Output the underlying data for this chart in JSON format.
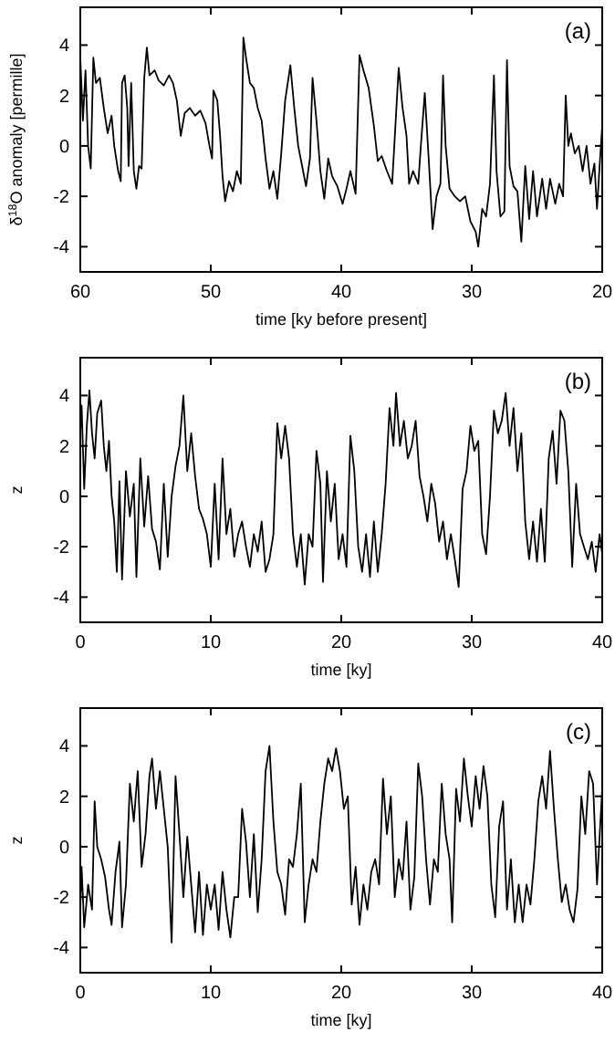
{
  "chart_data": [
    {
      "type": "line",
      "xlabel": "time [ky before present]",
      "ylabel": "δ$^{18}$O anomaly [permille]",
      "annotations": [
        "(a)"
      ],
      "xlim": [
        60,
        20
      ],
      "ylim": [
        -5,
        5.5
      ],
      "xticks": [
        60,
        50,
        40,
        30,
        20
      ],
      "yticks": [
        -4,
        -2,
        0,
        2,
        4
      ],
      "x": [
        60,
        59.8,
        59.6,
        59.4,
        59.2,
        59.0,
        58.8,
        58.5,
        58.2,
        57.9,
        57.6,
        57.4,
        57.1,
        56.9,
        56.8,
        56.6,
        56.4,
        56.3,
        56.1,
        55.9,
        55.7,
        55.5,
        55.3,
        55.1,
        54.9,
        54.7,
        54.3,
        54.0,
        53.6,
        53.2,
        52.9,
        52.6,
        52.3,
        52.0,
        51.6,
        51.2,
        50.8,
        50.4,
        50.1,
        49.9,
        49.8,
        49.5,
        49.3,
        49.1,
        48.9,
        48.6,
        48.3,
        48.0,
        47.7,
        47.5,
        47.3,
        47.0,
        46.7,
        46.4,
        46.1,
        45.8,
        45.5,
        45.2,
        44.9,
        44.6,
        44.3,
        43.9,
        43.6,
        43.3,
        43.0,
        42.7,
        42.4,
        42.2,
        41.9,
        41.6,
        41.3,
        41.0,
        40.7,
        40.3,
        39.9,
        39.6,
        39.3,
        38.9,
        38.6,
        38.3,
        37.9,
        37.5,
        37.2,
        36.9,
        36.5,
        36.1,
        35.6,
        35.3,
        35.0,
        34.8,
        34.5,
        34.1,
        33.9,
        33.6,
        33.3,
        33.0,
        32.7,
        32.4,
        32.2,
        32.0,
        31.7,
        31.3,
        30.9,
        30.5,
        30.1,
        29.7,
        29.5,
        29.2,
        28.9,
        28.6,
        28.3,
        28.1,
        27.8,
        27.5,
        27.3,
        27.1,
        26.8,
        26.5,
        26.2,
        25.9,
        25.6,
        25.3,
        25.0,
        24.6,
        24.3,
        24.0,
        23.6,
        23.3,
        23.0,
        22.8,
        22.6,
        22.4,
        22.1,
        21.8,
        21.5,
        21.2,
        20.9,
        20.6,
        20.4,
        20.2,
        20.0
      ],
      "series": [
        {
          "color": "#000000",
          "values": [
            3.5,
            1.0,
            3.0,
            0.0,
            -0.9,
            3.5,
            2.5,
            2.7,
            1.5,
            0.5,
            1.2,
            0.0,
            -1.0,
            -1.4,
            2.5,
            2.8,
            1.5,
            -0.8,
            2.5,
            -1.0,
            -1.7,
            -0.8,
            -0.9,
            2.7,
            3.9,
            2.8,
            3.0,
            2.6,
            2.4,
            2.8,
            2.5,
            1.8,
            0.4,
            1.3,
            1.5,
            1.2,
            1.4,
            0.9,
            0.0,
            -0.5,
            2.2,
            1.8,
            0.5,
            -1.2,
            -2.2,
            -1.4,
            -1.8,
            -1.0,
            -1.5,
            4.3,
            3.5,
            2.5,
            2.3,
            1.5,
            1.0,
            -0.5,
            -1.7,
            -1.0,
            -2.1,
            -0.3,
            1.8,
            3.2,
            1.5,
            0.0,
            -0.8,
            -1.6,
            -0.5,
            2.7,
            1.0,
            -1.0,
            -2.1,
            -0.5,
            -1.2,
            -1.6,
            -2.3,
            -1.7,
            -1.0,
            -1.9,
            3.6,
            3.0,
            2.3,
            0.8,
            -0.6,
            -0.4,
            -1.0,
            -1.5,
            3.1,
            1.5,
            0.4,
            -1.5,
            -1.0,
            -1.5,
            0.0,
            2.1,
            -0.5,
            -3.3,
            -2.0,
            -1.5,
            2.8,
            0.0,
            -1.7,
            -2.0,
            -2.2,
            -2.0,
            -3.0,
            -3.4,
            -4.0,
            -2.5,
            -2.8,
            -1.5,
            2.8,
            -1.0,
            -2.8,
            -2.6,
            3.4,
            -0.8,
            -1.6,
            -1.8,
            -3.8,
            -0.8,
            -2.9,
            -1.0,
            -2.8,
            -1.3,
            -2.5,
            -1.3,
            -2.3,
            -1.5,
            -2.0,
            2.0,
            0.0,
            0.5,
            -0.3,
            0.0,
            -1.0,
            0.0,
            -1.5,
            -0.7,
            -2.5,
            -0.8,
            0.8
          ]
        }
      ]
    },
    {
      "type": "line",
      "xlabel": "time [ky]",
      "ylabel": "z",
      "annotations": [
        "(b)"
      ],
      "xlim": [
        0,
        40
      ],
      "ylim": [
        -5,
        5.5
      ],
      "xticks": [
        0,
        10,
        20,
        30,
        40
      ],
      "yticks": [
        -4,
        -2,
        0,
        2,
        4
      ],
      "x": [
        0,
        0.1,
        0.3,
        0.5,
        0.7,
        0.9,
        1.1,
        1.3,
        1.6,
        1.8,
        2.0,
        2.2,
        2.4,
        2.6,
        2.8,
        3.0,
        3.2,
        3.5,
        3.8,
        4.1,
        4.3,
        4.6,
        4.9,
        5.2,
        5.5,
        5.8,
        6.1,
        6.4,
        6.7,
        7.0,
        7.3,
        7.6,
        7.9,
        8.2,
        8.5,
        8.8,
        9.1,
        9.4,
        9.7,
        10.0,
        10.3,
        10.6,
        10.9,
        11.2,
        11.5,
        11.8,
        12.1,
        12.4,
        12.7,
        13.0,
        13.3,
        13.6,
        13.9,
        14.2,
        14.5,
        14.8,
        15.1,
        15.4,
        15.7,
        16.0,
        16.3,
        16.6,
        16.9,
        17.2,
        17.5,
        17.8,
        18.1,
        18.4,
        18.6,
        18.9,
        19.2,
        19.5,
        19.8,
        20.1,
        20.4,
        20.7,
        21.0,
        21.3,
        21.6,
        21.9,
        22.2,
        22.5,
        22.8,
        23.1,
        23.4,
        23.7,
        24.0,
        24.2,
        24.5,
        24.8,
        25.1,
        25.4,
        25.7,
        26.0,
        26.3,
        26.6,
        26.9,
        27.2,
        27.5,
        27.8,
        28.1,
        28.4,
        28.7,
        29.0,
        29.3,
        29.6,
        29.9,
        30.2,
        30.5,
        30.8,
        31.1,
        31.4,
        31.7,
        32.0,
        32.3,
        32.6,
        32.9,
        33.2,
        33.5,
        33.8,
        34.1,
        34.4,
        34.7,
        35.0,
        35.3,
        35.6,
        35.9,
        36.2,
        36.5,
        36.8,
        37.1,
        37.4,
        37.7,
        38.0,
        38.3,
        38.6,
        38.9,
        39.2,
        39.5,
        39.8,
        40.0
      ],
      "series": [
        {
          "color": "#000000",
          "values": [
            2.5,
            3.6,
            0.3,
            2.8,
            4.2,
            2.5,
            1.5,
            3.3,
            3.8,
            2.0,
            1.0,
            2.2,
            0.0,
            -1.0,
            -3.0,
            0.6,
            -3.3,
            1.0,
            -0.8,
            0.5,
            -3.2,
            1.5,
            -1.2,
            0.8,
            -1.3,
            -1.8,
            -2.9,
            0.5,
            -2.4,
            0.0,
            1.2,
            2.0,
            4.0,
            1.0,
            2.5,
            0.8,
            -0.5,
            -0.9,
            -1.5,
            -2.8,
            0.5,
            -2.5,
            1.5,
            -1.5,
            -0.5,
            -2.4,
            -1.5,
            -1.0,
            -2.0,
            -2.8,
            -1.5,
            -2.2,
            -1.0,
            -3.0,
            -2.5,
            -1.5,
            2.9,
            1.5,
            2.8,
            1.5,
            -1.5,
            -2.8,
            -1.5,
            -3.5,
            -1.5,
            -2.0,
            1.8,
            0.5,
            -3.4,
            1.0,
            -1.0,
            0.5,
            -2.5,
            -1.5,
            -2.8,
            2.4,
            1.0,
            -2.0,
            -3.0,
            -1.5,
            -3.2,
            -1.0,
            -3.0,
            -1.5,
            0.5,
            3.5,
            2.0,
            4.1,
            2.0,
            3.0,
            1.5,
            2.0,
            3.0,
            0.8,
            0.0,
            -1.0,
            0.5,
            -0.3,
            -1.8,
            -1.0,
            -2.5,
            -1.5,
            -2.5,
            -3.6,
            0.3,
            1.0,
            2.8,
            1.8,
            2.2,
            -1.5,
            -2.3,
            0.0,
            3.4,
            2.5,
            3.0,
            4.1,
            2.0,
            3.5,
            1.0,
            2.5,
            -1.0,
            -2.5,
            -1.0,
            -2.6,
            -0.5,
            -2.6,
            1.5,
            2.6,
            0.5,
            3.4,
            3.0,
            1.0,
            -2.8,
            0.5,
            -1.5,
            -2.0,
            -2.5,
            -1.8,
            -3.0,
            -1.5,
            -2.3
          ]
        }
      ]
    },
    {
      "type": "line",
      "xlabel": "time [ky]",
      "ylabel": "z",
      "annotations": [
        "(c)"
      ],
      "xlim": [
        0,
        40
      ],
      "ylim": [
        -5,
        5.5
      ],
      "xticks": [
        0,
        10,
        20,
        30,
        40
      ],
      "yticks": [
        -4,
        -2,
        0,
        2,
        4
      ],
      "x": [
        0,
        0.1,
        0.3,
        0.6,
        0.9,
        1.1,
        1.3,
        1.6,
        1.9,
        2.2,
        2.4,
        2.7,
        3.0,
        3.2,
        3.5,
        3.8,
        4.1,
        4.4,
        4.7,
        5.0,
        5.3,
        5.5,
        5.8,
        6.1,
        6.4,
        6.7,
        7.0,
        7.3,
        7.6,
        7.9,
        8.2,
        8.5,
        8.8,
        9.1,
        9.4,
        9.7,
        10.0,
        10.3,
        10.6,
        10.9,
        11.2,
        11.5,
        11.8,
        12.1,
        12.4,
        12.7,
        13.0,
        13.3,
        13.6,
        13.9,
        14.2,
        14.5,
        14.8,
        15.1,
        15.4,
        15.7,
        16.0,
        16.3,
        16.6,
        16.9,
        17.2,
        17.5,
        17.8,
        18.1,
        18.4,
        18.7,
        19.0,
        19.3,
        19.6,
        19.9,
        20.2,
        20.5,
        20.8,
        21.1,
        21.4,
        21.7,
        22.0,
        22.3,
        22.6,
        22.9,
        23.2,
        23.5,
        23.8,
        24.1,
        24.4,
        24.7,
        25.0,
        25.3,
        25.6,
        25.9,
        26.2,
        26.5,
        26.8,
        27.1,
        27.4,
        27.7,
        28.0,
        28.3,
        28.5,
        28.8,
        29.1,
        29.4,
        29.7,
        30.0,
        30.3,
        30.6,
        30.9,
        31.2,
        31.5,
        31.8,
        32.1,
        32.4,
        32.7,
        33.0,
        33.3,
        33.6,
        33.9,
        34.2,
        34.5,
        34.8,
        35.1,
        35.4,
        35.7,
        36.0,
        36.3,
        36.6,
        36.9,
        37.2,
        37.5,
        37.8,
        38.1,
        38.4,
        38.7,
        39.0,
        39.3,
        39.6,
        40.0
      ],
      "series": [
        {
          "color": "#000000",
          "values": [
            -2.5,
            -0.8,
            -3.2,
            -1.5,
            -2.5,
            1.8,
            0.0,
            -0.5,
            -1.2,
            -2.5,
            -3.1,
            -1.0,
            0.2,
            -3.2,
            -1.5,
            2.5,
            1.0,
            3.0,
            -0.8,
            0.5,
            2.8,
            3.5,
            1.5,
            3.0,
            1.5,
            0.0,
            -3.8,
            2.8,
            0.5,
            -2.0,
            0.4,
            -1.5,
            -3.4,
            -1.0,
            -3.5,
            -1.5,
            -2.5,
            -1.5,
            -3.3,
            -1.0,
            -2.5,
            -3.6,
            -2.0,
            -2.0,
            1.5,
            0.2,
            -2.0,
            0.5,
            -2.6,
            -0.5,
            3.0,
            4.0,
            1.0,
            -1.0,
            -1.5,
            -2.7,
            -0.5,
            -0.8,
            0.5,
            2.5,
            -3.0,
            -1.5,
            -0.5,
            -1.0,
            1.0,
            2.5,
            3.5,
            3.0,
            3.9,
            3.0,
            1.5,
            2.0,
            -2.3,
            -0.8,
            -3.1,
            -1.5,
            -2.5,
            -1.0,
            -0.5,
            -1.5,
            2.7,
            0.5,
            2.0,
            -2.0,
            -0.5,
            -1.3,
            1.0,
            -2.5,
            -1.2,
            3.3,
            2.0,
            -0.5,
            -2.3,
            -0.5,
            -1.0,
            2.5,
            0.5,
            -0.5,
            -3.0,
            2.3,
            1.0,
            3.5,
            2.0,
            0.8,
            2.8,
            1.5,
            3.2,
            2.0,
            -1.5,
            -2.8,
            0.8,
            1.8,
            -2.5,
            -0.5,
            -3.0,
            -1.5,
            -3.0,
            -1.5,
            -2.3,
            -0.5,
            1.8,
            2.8,
            1.5,
            3.8,
            1.5,
            -0.5,
            -2.2,
            -1.5,
            -2.5,
            -3.0,
            -1.7,
            2.0,
            0.5,
            3.0,
            2.5,
            -1.5,
            2.3
          ]
        }
      ]
    }
  ]
}
